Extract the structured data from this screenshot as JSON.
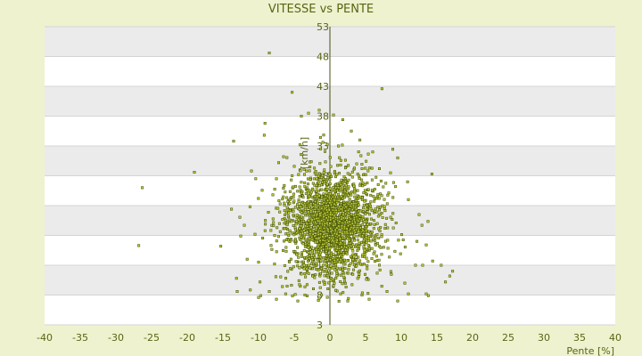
{
  "chart_data": {
    "type": "scatter",
    "title": "VITESSE vs PENTE",
    "xlabel": "Pente [%]",
    "ylabel": "[km/h]",
    "xlim": [
      -40,
      40
    ],
    "ylim": [
      3,
      53
    ],
    "x_ticks": [
      "-40",
      "-35",
      "-30",
      "-25",
      "-20",
      "-15",
      "-10",
      "-5",
      "0",
      "5",
      "10",
      "15",
      "20",
      "25",
      "30",
      "35",
      "40"
    ],
    "y_ticks": [
      "3",
      "8",
      "13",
      "18",
      "23",
      "28",
      "33",
      "38",
      "43",
      "48",
      "53"
    ],
    "grid": true,
    "legend": "none",
    "colors": {
      "marker_fill": "#c8d23c",
      "marker_edge": "#4a5a0a",
      "band": "#ebebeb",
      "background": "#eef2cf"
    },
    "points": [
      [
        -8.5,
        48.6
      ],
      [
        7.3,
        42.6
      ],
      [
        -5.3,
        42.0
      ],
      [
        -9.1,
        36.8
      ],
      [
        -4.0,
        38.0
      ],
      [
        -3.0,
        38.5
      ],
      [
        -1.5,
        39.0
      ],
      [
        1.8,
        37.4
      ],
      [
        0.5,
        38.2
      ],
      [
        -13.5,
        33.8
      ],
      [
        -9.2,
        34.8
      ],
      [
        -6.5,
        31.2
      ],
      [
        -4.2,
        33.2
      ],
      [
        -1.3,
        32.5
      ],
      [
        1.2,
        33.0
      ],
      [
        4.2,
        34.0
      ],
      [
        6.0,
        32.0
      ],
      [
        3.0,
        35.5
      ],
      [
        -19.0,
        28.6
      ],
      [
        -11.0,
        28.8
      ],
      [
        -7.5,
        27.5
      ],
      [
        -2.8,
        29.5
      ],
      [
        1.5,
        29.8
      ],
      [
        4.5,
        29.2
      ],
      [
        8.5,
        28.5
      ],
      [
        9.5,
        31.0
      ],
      [
        14.3,
        28.3
      ],
      [
        -26.3,
        26.0
      ],
      [
        -13.8,
        22.4
      ],
      [
        -11.2,
        22.8
      ],
      [
        -8.0,
        24.8
      ],
      [
        9.2,
        26.2
      ],
      [
        11.0,
        24.0
      ],
      [
        12.5,
        21.5
      ],
      [
        -26.8,
        16.3
      ],
      [
        -15.3,
        16.2
      ],
      [
        -12.5,
        17.9
      ],
      [
        -12.0,
        19.7
      ],
      [
        -10.5,
        18.2
      ],
      [
        12.2,
        17.0
      ],
      [
        12.9,
        19.7
      ],
      [
        13.5,
        16.4
      ],
      [
        -11.6,
        14.0
      ],
      [
        -10.0,
        13.5
      ],
      [
        12.0,
        13.0
      ],
      [
        13.0,
        13.0
      ],
      [
        14.4,
        13.7
      ],
      [
        15.6,
        13.0
      ],
      [
        17.2,
        12.0
      ],
      [
        -13.1,
        10.8
      ],
      [
        -9.8,
        10.2
      ],
      [
        -6.0,
        9.5
      ],
      [
        10.5,
        10.0
      ],
      [
        16.2,
        10.2
      ],
      [
        16.8,
        11.2
      ],
      [
        -13.0,
        8.6
      ],
      [
        -9.7,
        7.9
      ],
      [
        -8.5,
        8.6
      ],
      [
        -6.2,
        8.2
      ],
      [
        -3.5,
        8.0
      ],
      [
        1.5,
        8.2
      ],
      [
        4.5,
        8.0
      ],
      [
        8.0,
        8.6
      ],
      [
        11.0,
        8.2
      ],
      [
        13.5,
        8.2
      ],
      [
        -10.0,
        7.6
      ],
      [
        -7.5,
        7.3
      ],
      [
        -4.5,
        7.0
      ],
      [
        -1.5,
        7.5
      ],
      [
        2.5,
        7.0
      ],
      [
        5.5,
        7.3
      ],
      [
        9.5,
        7.0
      ],
      [
        13.8,
        7.9
      ]
    ],
    "cluster": {
      "x_mean": 0.3,
      "x_sd": 3.3,
      "y_mean": 19.8,
      "y_sd": 4.5,
      "n": 2100
    }
  }
}
